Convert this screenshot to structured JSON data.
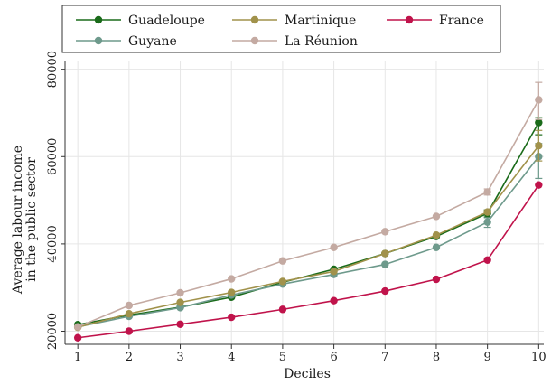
{
  "chart_data": {
    "type": "line",
    "xlabel": "Deciles",
    "ylabel_lines": [
      "Average labour income",
      "in the public sector"
    ],
    "x": [
      1,
      2,
      3,
      4,
      5,
      6,
      7,
      8,
      9,
      10
    ],
    "xlim": [
      0.75,
      10.1
    ],
    "ylim": [
      17000,
      82000
    ],
    "yticks": [
      20000,
      40000,
      60000,
      80000
    ],
    "grid": true,
    "legend_position": "top",
    "series": [
      {
        "name": "Guadeloupe",
        "color": "#1a6b1a",
        "values": [
          21500,
          23700,
          25500,
          27800,
          31200,
          34200,
          37800,
          41700,
          47000,
          67800
        ],
        "error_top": [
          null,
          null,
          null,
          null,
          null,
          null,
          null,
          null,
          47800,
          69000
        ],
        "error_bottom": [
          null,
          null,
          null,
          null,
          null,
          null,
          null,
          null,
          46200,
          65000
        ]
      },
      {
        "name": "Guyane",
        "color": "#6e9a8c",
        "values": [
          21000,
          23400,
          25400,
          28300,
          30800,
          33000,
          35300,
          39200,
          45000,
          60000
        ],
        "error_top": [
          null,
          null,
          null,
          null,
          null,
          null,
          null,
          null,
          46000,
          63000
        ],
        "error_bottom": [
          null,
          null,
          null,
          null,
          null,
          null,
          null,
          null,
          43800,
          55000
        ]
      },
      {
        "name": "Martinique",
        "color": "#a1924b",
        "values": [
          20900,
          24000,
          26600,
          28900,
          31400,
          33700,
          37800,
          42000,
          47300,
          62500
        ],
        "error_top": [
          null,
          null,
          null,
          null,
          null,
          null,
          null,
          null,
          null,
          66000
        ],
        "error_bottom": [
          null,
          null,
          null,
          null,
          null,
          null,
          null,
          null,
          null,
          59000
        ]
      },
      {
        "name": "La Réunion",
        "color": "#c4aaa2",
        "values": [
          21000,
          25900,
          28800,
          32000,
          36100,
          39200,
          42800,
          46300,
          51900,
          73000
        ],
        "error_top": [
          null,
          null,
          null,
          null,
          null,
          null,
          null,
          null,
          52600,
          77000
        ],
        "error_bottom": [
          null,
          null,
          null,
          null,
          null,
          null,
          null,
          null,
          51200,
          68500
        ]
      },
      {
        "name": "France",
        "color": "#c0134b",
        "values": [
          18500,
          20000,
          21600,
          23200,
          25000,
          27000,
          29200,
          31900,
          36300,
          53500
        ],
        "error_top": [
          null,
          null,
          null,
          null,
          null,
          null,
          null,
          null,
          null,
          null
        ],
        "error_bottom": [
          null,
          null,
          null,
          null,
          null,
          null,
          null,
          null,
          null,
          null
        ]
      }
    ]
  }
}
